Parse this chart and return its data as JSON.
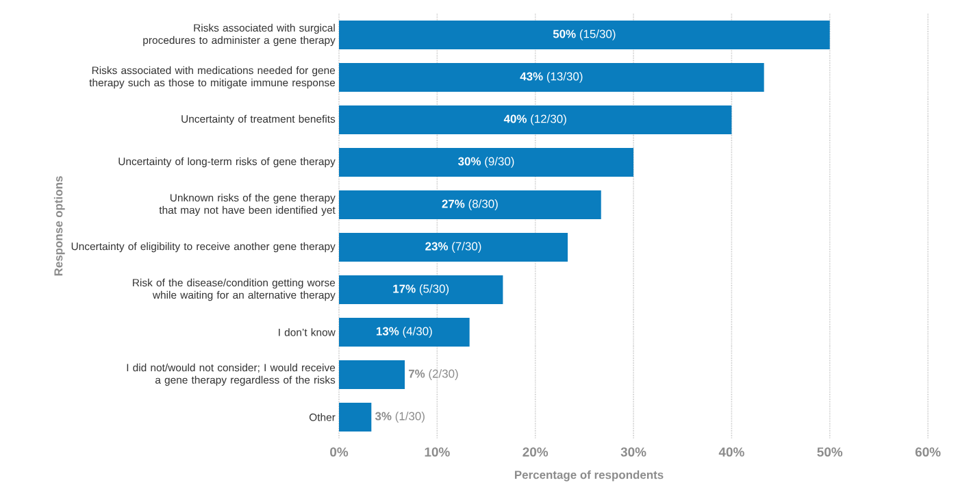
{
  "chart_data": {
    "type": "bar",
    "orientation": "horizontal",
    "ylabel": "Response options",
    "xlabel": "Percentage of respondents",
    "categories": [
      "Risks associated with surgical procedures to administer a gene therapy",
      "Risks associated with medications needed for gene therapy such as those to mitigate immune response",
      "Uncertainty of treatment benefits",
      "Uncertainty of long-term risks of gene therapy",
      "Unknown risks of the gene therapy that may not have been identified yet",
      "Uncertainty of eligibility to receive another gene therapy",
      "Risk of the disease/condition getting worse while waiting for an alternative therapy",
      "I don’t know",
      "I did not/would not consider; I would receive a gene therapy regardless of the risks",
      "Other"
    ],
    "values": [
      50,
      43.3,
      40,
      30,
      26.7,
      23.3,
      16.7,
      13.3,
      6.7,
      3.3
    ],
    "value_labels": [
      "**50%** (15/30)",
      "**43%** (13/30)",
      "**40%** (12/30)",
      "**30%** (9/30)",
      "**27%** (8/30)",
      "**23%** (7/30)",
      "**17%** (5/30)",
      "**13%** (4/30)",
      "**7%** (2/30)",
      "**3%** (1/30)"
    ],
    "color": "#0a7dbe",
    "xlim": [
      0,
      60
    ],
    "xticks": [
      {
        "value": 0,
        "label": "0%"
      },
      {
        "value": 10,
        "label": "10%"
      },
      {
        "value": 20,
        "label": "20%"
      },
      {
        "value": 30,
        "label": "30%"
      },
      {
        "value": 40,
        "label": "40%"
      },
      {
        "value": 50,
        "label": "50%"
      },
      {
        "value": 60,
        "label": "60%"
      }
    ],
    "grid": "x"
  }
}
